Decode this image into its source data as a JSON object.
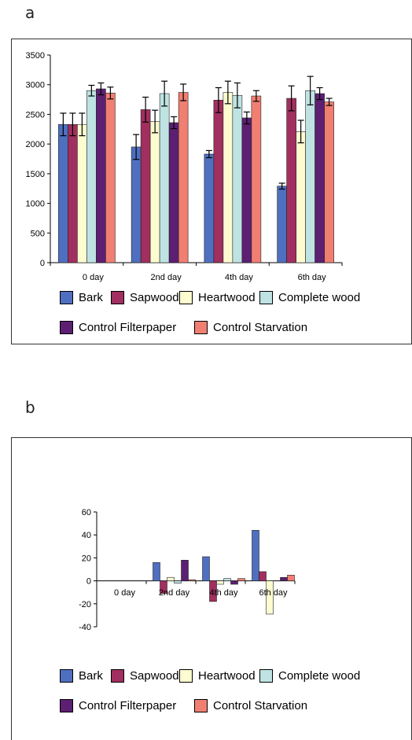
{
  "panels": [
    {
      "letter": "a"
    },
    {
      "letter": "b"
    }
  ],
  "legend": [
    {
      "name": "Bark",
      "color": "#4f6fc0"
    },
    {
      "name": "Sapwood",
      "color": "#a12f5f"
    },
    {
      "name": "Heartwood",
      "color": "#fdfbd0"
    },
    {
      "name": "Complete wood",
      "color": "#bfe3e3"
    },
    {
      "name": "Control  Filterpaper",
      "color": "#5c1f72"
    },
    {
      "name": "Control Starvation",
      "color": "#f07f72"
    }
  ],
  "chart_data": [
    {
      "type": "bar",
      "title": "",
      "xlabel": "",
      "ylabel": "",
      "categories": [
        "0 day",
        "2nd day",
        "4th day",
        "6th day"
      ],
      "ylim": [
        0,
        3500
      ],
      "yticks": [
        "0",
        "500",
        "1000",
        "1500",
        "2000",
        "2500",
        "3000",
        "3500"
      ],
      "error_bars": true,
      "legend_position": "bottom",
      "series": [
        {
          "name": "Bark",
          "values": [
            2330,
            1950,
            1830,
            1290
          ],
          "errors": [
            190,
            210,
            60,
            50
          ]
        },
        {
          "name": "Sapwood",
          "values": [
            2330,
            2580,
            2740,
            2770
          ],
          "errors": [
            190,
            210,
            210,
            210
          ]
        },
        {
          "name": "Heartwood",
          "values": [
            2330,
            2380,
            2870,
            2210
          ],
          "errors": [
            190,
            190,
            190,
            190
          ]
        },
        {
          "name": "Complete wood",
          "values": [
            2900,
            2850,
            2820,
            2900
          ],
          "errors": [
            90,
            210,
            210,
            240
          ]
        },
        {
          "name": "Control  Filterpaper",
          "values": [
            2930,
            2360,
            2440,
            2850
          ],
          "errors": [
            100,
            100,
            100,
            100
          ]
        },
        {
          "name": "Control Starvation",
          "values": [
            2860,
            2870,
            2810,
            2710
          ],
          "errors": [
            100,
            140,
            90,
            60
          ]
        }
      ]
    },
    {
      "type": "bar",
      "title": "",
      "xlabel": "",
      "ylabel": "",
      "categories": [
        "0 day",
        "2nd day",
        "4th day",
        "6th day"
      ],
      "ylim": [
        -40,
        60
      ],
      "yticks": [
        "-40",
        "-20",
        "0",
        "20",
        "40",
        "60"
      ],
      "legend_position": "bottom",
      "series": [
        {
          "name": "Bark",
          "values": [
            0,
            16,
            21,
            44
          ]
        },
        {
          "name": "Sapwood",
          "values": [
            0,
            -11,
            -18,
            8
          ]
        },
        {
          "name": "Heartwood",
          "values": [
            0,
            3,
            -3,
            -29
          ]
        },
        {
          "name": "Complete wood",
          "values": [
            0,
            -2,
            2,
            0
          ]
        },
        {
          "name": "Control  Filterpaper",
          "values": [
            0,
            18,
            -3,
            3
          ]
        },
        {
          "name": "Control Starvation",
          "values": [
            0,
            1,
            2,
            5
          ]
        }
      ]
    }
  ]
}
